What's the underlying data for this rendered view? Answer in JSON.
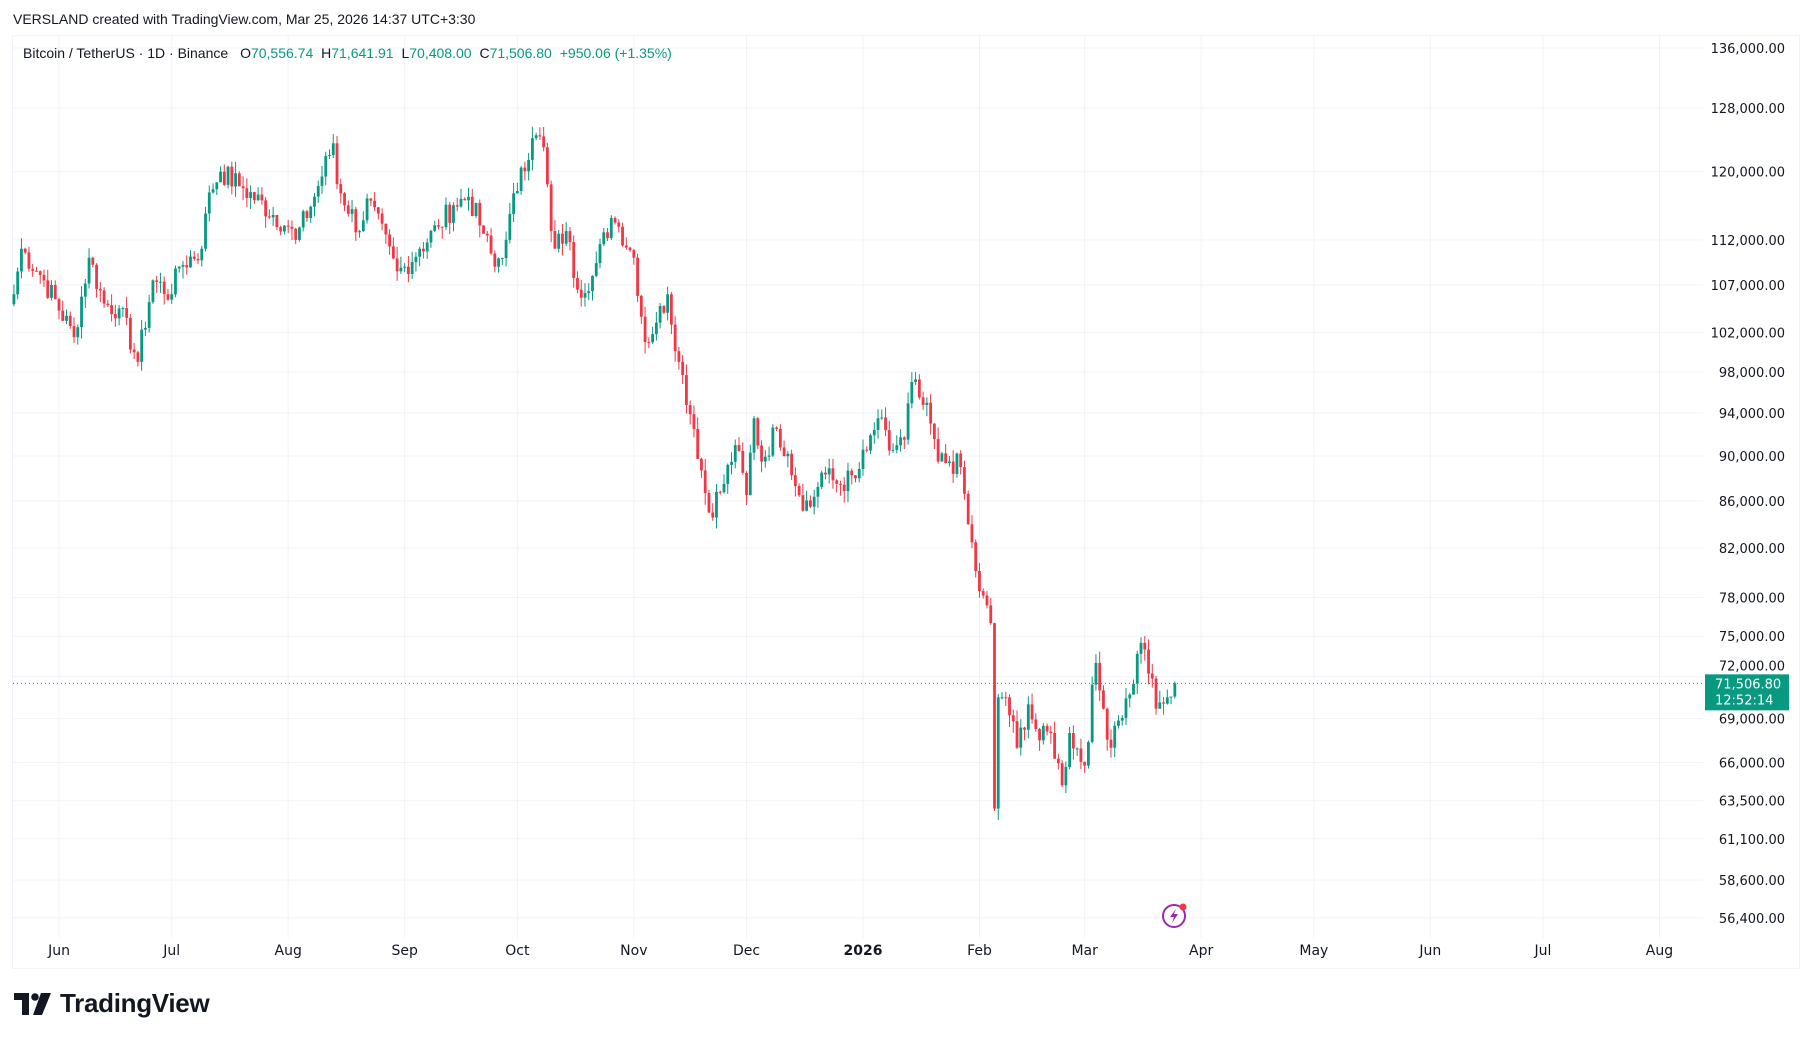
{
  "header": {
    "credit": "VERSLAND created with TradingView.com, Mar 25, 2026 14:37 UTC+3:30"
  },
  "legend": {
    "symbol": "Bitcoin / TetherUS · 1D · Binance",
    "o_label": "O",
    "o": "70,556.74",
    "h_label": "H",
    "h": "71,641.91",
    "l_label": "L",
    "l": "70,408.00",
    "c_label": "C",
    "c": "71,506.80",
    "change": "+950.06 (+1.35%)"
  },
  "price_tag": {
    "price": "71,506.80",
    "countdown": "12:52:14"
  },
  "colors": {
    "up": "#089981",
    "down": "#F23645",
    "grid": "#f0f3fa",
    "text": "#131722"
  },
  "logo": {
    "text": "TradingView"
  },
  "icons": {
    "alert": "lightning-bolt-icon"
  },
  "chart_data": {
    "type": "candlestick",
    "title": "Bitcoin / TetherUS · 1D · Binance",
    "scale": "log",
    "ylim": [
      55500,
      138000
    ],
    "y_ticks": [
      "136,000.00",
      "128,000.00",
      "120,000.00",
      "112,000.00",
      "107,000.00",
      "102,000.00",
      "98,000.00",
      "94,000.00",
      "90,000.00",
      "86,000.00",
      "82,000.00",
      "78,000.00",
      "75,000.00",
      "72,000.00",
      "69,000.00",
      "66,000.00",
      "63,500.00",
      "61,100.00",
      "58,600.00",
      "56,400.00"
    ],
    "y_tick_values": [
      136000,
      128000,
      120000,
      112000,
      107000,
      102000,
      98000,
      94000,
      90000,
      86000,
      82000,
      78000,
      75000,
      72000,
      69000,
      66000,
      63500,
      61100,
      58600,
      56400
    ],
    "x_ticks": [
      {
        "label": "Jun",
        "day": 0
      },
      {
        "label": "Jul",
        "day": 30
      },
      {
        "label": "Aug",
        "day": 61
      },
      {
        "label": "Sep",
        "day": 92
      },
      {
        "label": "Oct",
        "day": 122
      },
      {
        "label": "Nov",
        "day": 153
      },
      {
        "label": "Dec",
        "day": 183
      },
      {
        "label": "2026",
        "day": 214,
        "bold": true
      },
      {
        "label": "Feb",
        "day": 245
      },
      {
        "label": "Mar",
        "day": 273
      },
      {
        "label": "Apr",
        "day": 304
      },
      {
        "label": "May",
        "day": 334
      },
      {
        "label": "Jun",
        "day": 365
      },
      {
        "label": "Jul",
        "day": 395
      },
      {
        "label": "Aug",
        "day": 426
      }
    ],
    "x_domain_days": [
      -13,
      445
    ],
    "closes_keypoints_note": "day = days since 2025-06-01; approx daily close in USDT",
    "closes": [
      [
        -12,
        106000
      ],
      [
        -10,
        111000
      ],
      [
        -4,
        107500
      ],
      [
        4,
        101500
      ],
      [
        8,
        110000
      ],
      [
        12,
        105000
      ],
      [
        16,
        104500
      ],
      [
        21,
        99000
      ],
      [
        25,
        107500
      ],
      [
        30,
        106000
      ],
      [
        32,
        109000
      ],
      [
        38,
        111000
      ],
      [
        40,
        117500
      ],
      [
        43,
        120000
      ],
      [
        49,
        118000
      ],
      [
        61,
        113500
      ],
      [
        63,
        112000
      ],
      [
        68,
        117000
      ],
      [
        73,
        123500
      ],
      [
        74,
        118500
      ],
      [
        80,
        113000
      ],
      [
        82,
        116800
      ],
      [
        90,
        108500
      ],
      [
        92,
        109000
      ],
      [
        96,
        111000
      ],
      [
        101,
        113500
      ],
      [
        105,
        116000
      ],
      [
        109,
        117000
      ],
      [
        113,
        112700
      ],
      [
        116,
        109000
      ],
      [
        119,
        112000
      ],
      [
        123,
        120500
      ],
      [
        127,
        124500
      ],
      [
        129,
        123000
      ],
      [
        131,
        113000
      ],
      [
        132,
        111000
      ],
      [
        135,
        113000
      ],
      [
        138,
        106500
      ],
      [
        142,
        108000
      ],
      [
        147,
        114500
      ],
      [
        149,
        113500
      ],
      [
        153,
        110000
      ],
      [
        156,
        101000
      ],
      [
        159,
        103000
      ],
      [
        162,
        106000
      ],
      [
        165,
        99000
      ],
      [
        169,
        92500
      ],
      [
        173,
        85000
      ],
      [
        177,
        87500
      ],
      [
        180,
        91000
      ],
      [
        183,
        86500
      ],
      [
        185,
        93500
      ],
      [
        187,
        89500
      ],
      [
        191,
        92500
      ],
      [
        194,
        90200
      ],
      [
        197,
        86500
      ],
      [
        200,
        85500
      ],
      [
        203,
        88500
      ],
      [
        207,
        87500
      ],
      [
        212,
        88000
      ],
      [
        215,
        90500
      ],
      [
        218,
        93500
      ],
      [
        221,
        90500
      ],
      [
        225,
        91500
      ],
      [
        227,
        97000
      ],
      [
        229,
        95500
      ],
      [
        232,
        93000
      ],
      [
        234,
        89500
      ],
      [
        237,
        89500
      ],
      [
        240,
        89000
      ],
      [
        242,
        84000
      ],
      [
        245,
        78500
      ],
      [
        248,
        76000
      ],
      [
        249,
        63000
      ],
      [
        250,
        70500
      ],
      [
        252,
        70500
      ],
      [
        255,
        67000
      ],
      [
        258,
        70000
      ],
      [
        261,
        67500
      ],
      [
        264,
        68000
      ],
      [
        267,
        64500
      ],
      [
        269,
        68000
      ],
      [
        273,
        65800
      ],
      [
        276,
        73000
      ],
      [
        277,
        71000
      ],
      [
        280,
        67000
      ],
      [
        281,
        68500
      ],
      [
        285,
        70700
      ],
      [
        288,
        74500
      ],
      [
        289,
        74000
      ],
      [
        292,
        69700
      ],
      [
        295,
        70500
      ],
      [
        296,
        70556.74
      ],
      [
        297,
        71506.8
      ]
    ],
    "last_candle": {
      "open": 70556.74,
      "high": 71641.91,
      "low": 70408.0,
      "close": 71506.8
    }
  }
}
